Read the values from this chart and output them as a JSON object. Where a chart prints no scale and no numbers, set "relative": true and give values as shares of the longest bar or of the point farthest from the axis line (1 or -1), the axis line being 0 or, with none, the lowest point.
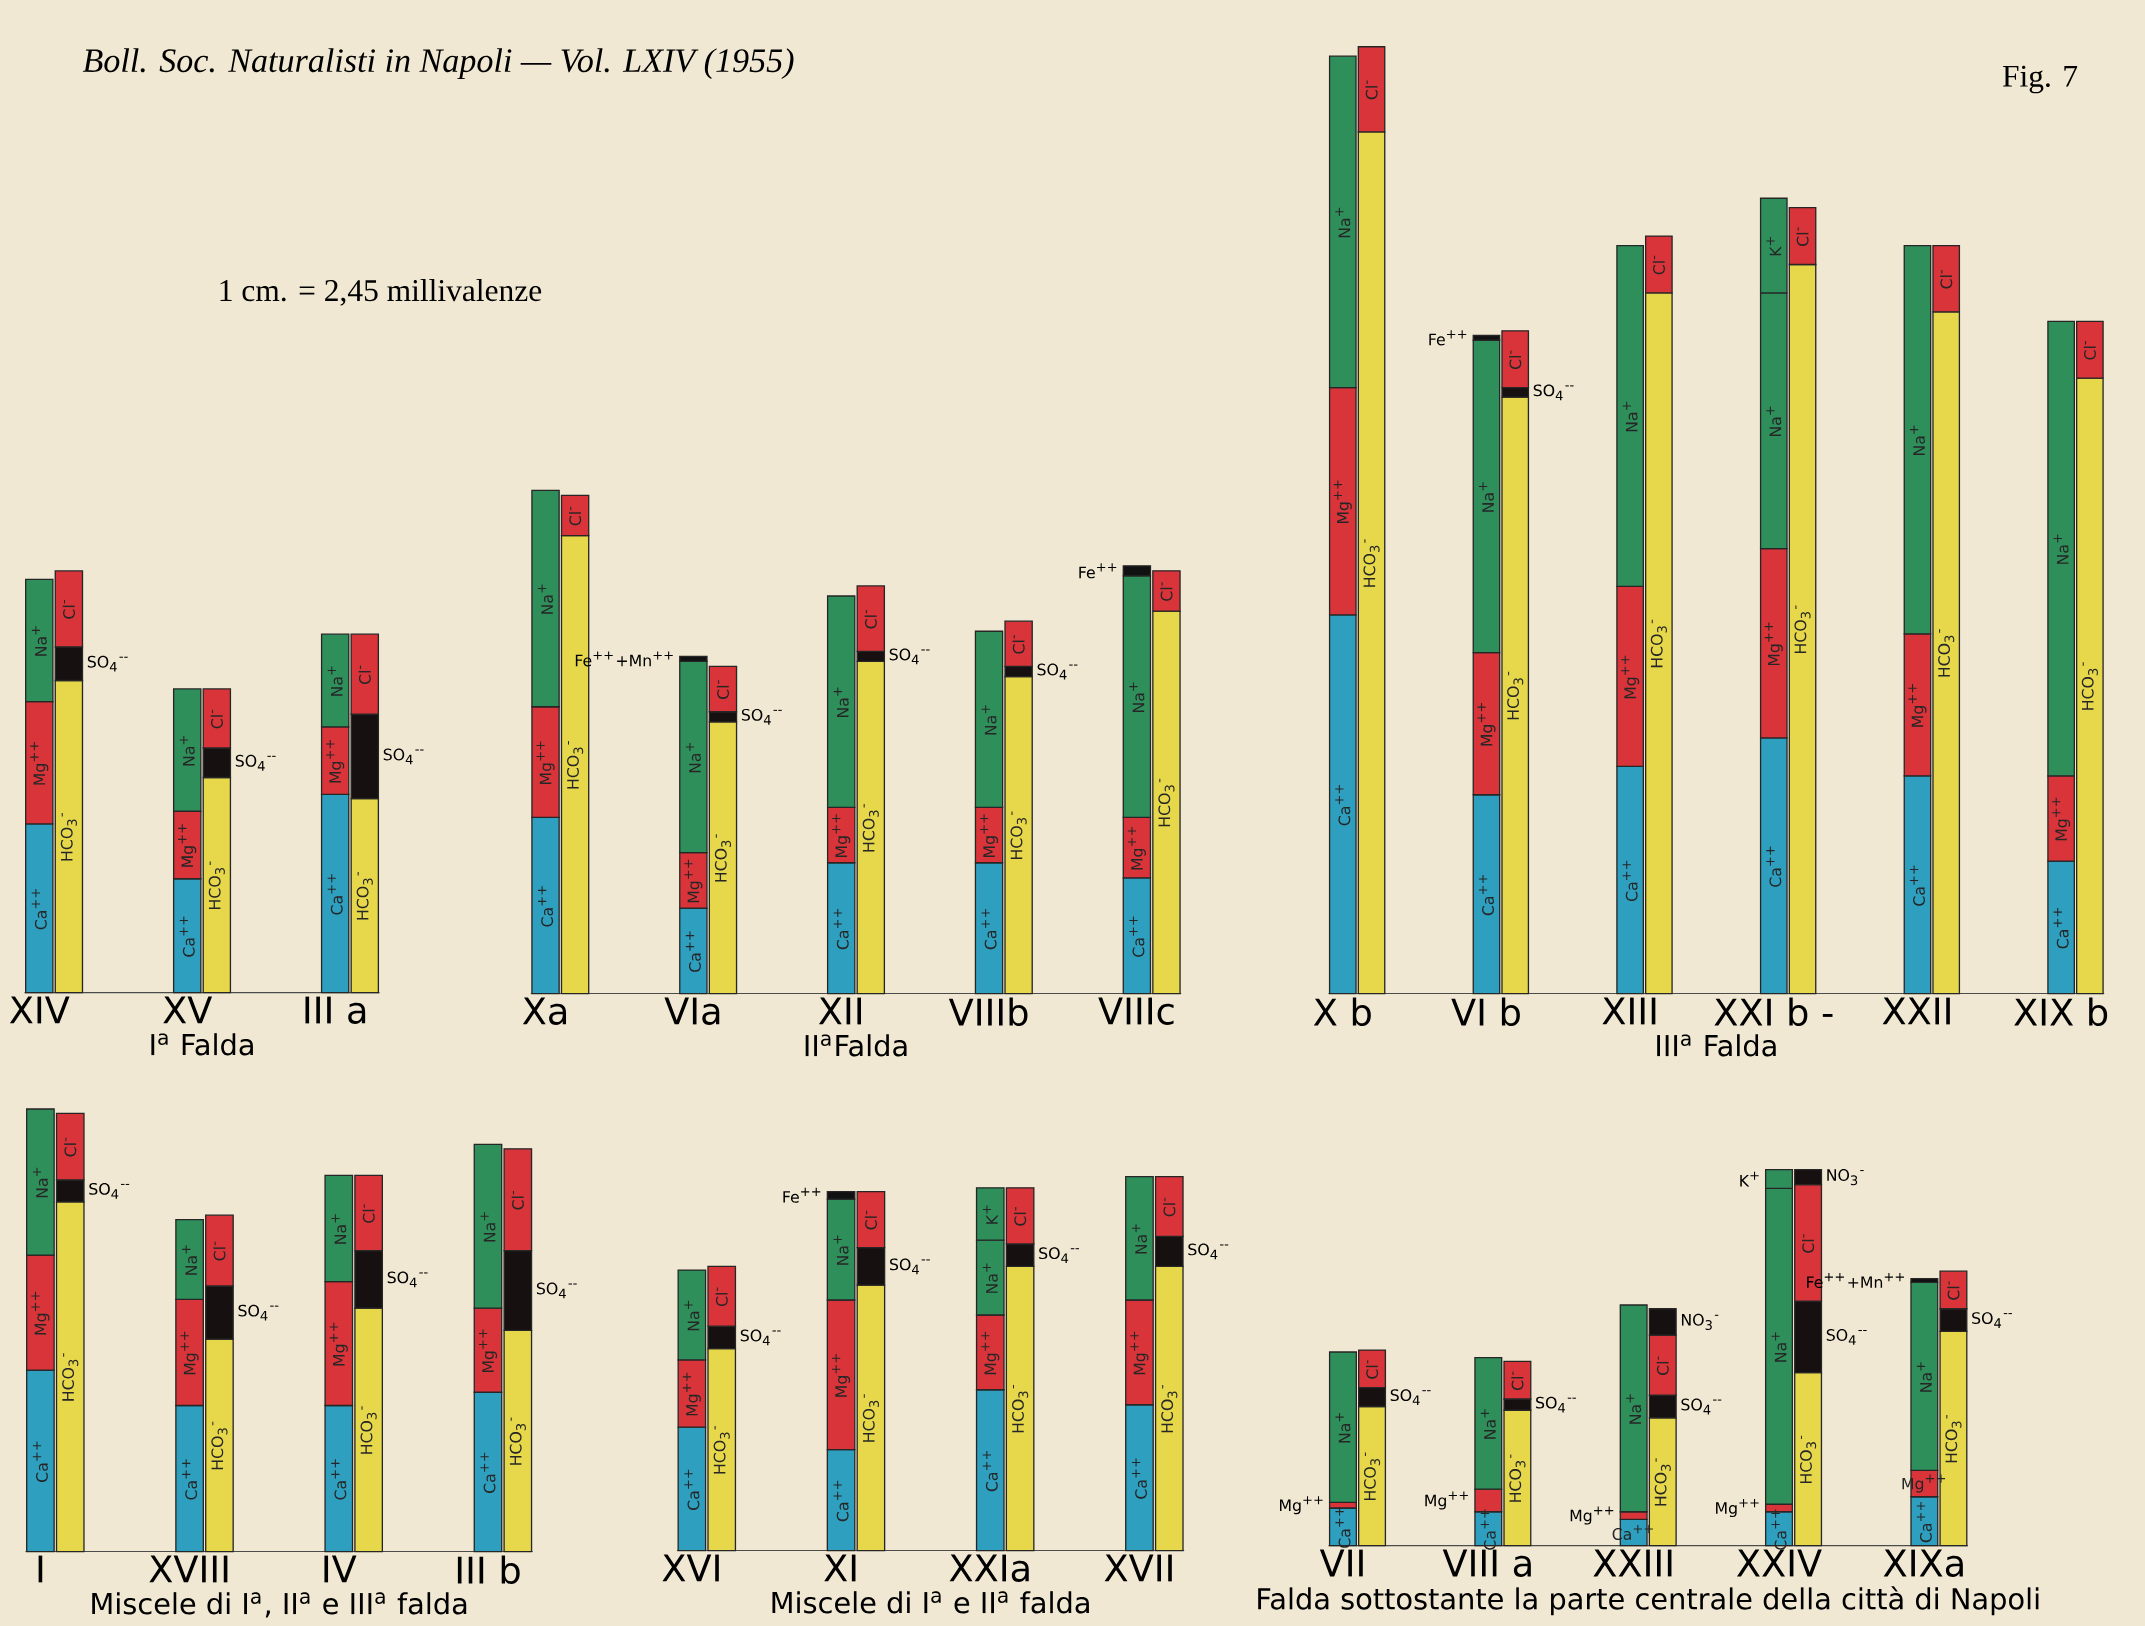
{
  "chart_data": [
    {
      "type": "bar",
      "stacked": true,
      "relative": true,
      "title": "Boll. Soc. Naturalisti in Napoli — Vol. LXIV (1955)",
      "annotations": [
        "Fig. 7",
        "1 cm. = 2,45 millivalenze"
      ],
      "xlabel": "I$^{a}$ Falda",
      "categories": [
        "XIV",
        null,
        null,
        null,
        null,
        "XV",
        null,
        null,
        null,
        null,
        "III a",
        null
      ],
      "series": [
        {
          "name": "Ca$^{++}$",
          "color": "#2e9fbf",
          "values": [
            0.4,
            null,
            null,
            null,
            null,
            0.27,
            null,
            null,
            null,
            null,
            0.47,
            null
          ]
        },
        {
          "name": "Mg$^{++}$",
          "color": "#d8343a",
          "values": [
            0.29,
            null,
            null,
            null,
            null,
            0.16,
            null,
            null,
            null,
            null,
            0.16,
            null
          ]
        },
        {
          "name": "Na$^{+}$",
          "color": "#2f8f5b",
          "values": [
            0.29,
            null,
            null,
            null,
            null,
            0.29,
            null,
            null,
            null,
            null,
            0.22,
            null
          ]
        },
        {
          "name": "HCO$_{3}$$^{-}$",
          "color": "#e6d84a",
          "values": [
            null,
            0.74,
            null,
            null,
            null,
            null,
            0.51,
            null,
            null,
            null,
            null,
            0.46
          ]
        },
        {
          "name": "SO$_{4}$$^{--}$",
          "color": "#161010",
          "values": [
            null,
            0.08,
            null,
            null,
            null,
            null,
            0.07,
            null,
            null,
            null,
            null,
            0.2
          ]
        },
        {
          "name": "Cl$^{-}$",
          "color": "#d8343a",
          "values": [
            null,
            0.18,
            null,
            null,
            null,
            null,
            0.14,
            null,
            null,
            null,
            null,
            0.19
          ]
        }
      ]
    },
    {
      "type": "bar",
      "stacked": true,
      "relative": true,
      "xlabel": "II$^{a}$Falda",
      "categories": [
        "Xa",
        null,
        null,
        null,
        null,
        "VIa",
        null,
        null,
        null,
        null,
        "XII",
        null,
        null,
        null,
        null,
        "VIIIb",
        null,
        null,
        null,
        null,
        "VIIIc",
        null
      ],
      "series": [
        {
          "name": "Ca$^{++}$",
          "color": "#2e9fbf",
          "values": [
            0.35,
            null,
            null,
            null,
            null,
            0.17,
            null,
            null,
            null,
            null,
            0.26,
            null,
            null,
            null,
            null,
            0.26,
            null,
            null,
            null,
            null,
            0.23,
            null
          ]
        },
        {
          "name": "Mg$^{++}$",
          "color": "#d8343a",
          "values": [
            0.22,
            null,
            null,
            null,
            null,
            0.11,
            null,
            null,
            null,
            null,
            0.11,
            null,
            null,
            null,
            null,
            0.11,
            null,
            null,
            null,
            null,
            0.12,
            null
          ]
        },
        {
          "name": "Na$^{+}$",
          "color": "#2f8f5b",
          "values": [
            0.43,
            null,
            null,
            null,
            null,
            0.38,
            null,
            null,
            null,
            null,
            0.42,
            null,
            null,
            null,
            null,
            0.35,
            null,
            null,
            null,
            null,
            0.48,
            null
          ]
        },
        {
          "name": "Fe$^{++}$",
          "color": "#111111",
          "values": [
            null,
            null,
            null,
            null,
            null,
            null,
            null,
            null,
            null,
            null,
            null,
            null,
            null,
            null,
            null,
            null,
            null,
            null,
            null,
            null,
            0.02,
            null
          ]
        },
        {
          "name": "Fe$^{++}$+Mn$^{++}$",
          "color": "#111111",
          "values": [
            null,
            null,
            null,
            null,
            null,
            0.01,
            null,
            null,
            null,
            null,
            null,
            null,
            null,
            null,
            null,
            null,
            null,
            null,
            null,
            null,
            null,
            null
          ]
        },
        {
          "name": "HCO$_{3}$$^{-}$",
          "color": "#e6d84a",
          "values": [
            null,
            0.91,
            null,
            null,
            null,
            null,
            0.54,
            null,
            null,
            null,
            null,
            0.66,
            null,
            null,
            null,
            null,
            0.63,
            null,
            null,
            null,
            null,
            0.76
          ]
        },
        {
          "name": "SO$_{4}$$^{--}$",
          "color": "#161010",
          "values": [
            null,
            null,
            null,
            null,
            null,
            null,
            0.02,
            null,
            null,
            null,
            null,
            0.02,
            null,
            null,
            null,
            null,
            0.02,
            null,
            null,
            null,
            null,
            null
          ]
        },
        {
          "name": "Cl$^{-}$",
          "color": "#d8343a",
          "values": [
            null,
            0.08,
            null,
            null,
            null,
            null,
            0.09,
            null,
            null,
            null,
            null,
            0.13,
            null,
            null,
            null,
            null,
            0.09,
            null,
            null,
            null,
            null,
            0.08
          ]
        }
      ]
    },
    {
      "type": "bar",
      "stacked": true,
      "relative": true,
      "xlabel": "III$^{a}$ Falda",
      "categories": [
        "X b",
        null,
        null,
        null,
        null,
        "VI b",
        null,
        null,
        null,
        null,
        "XIII",
        null,
        null,
        null,
        null,
        "XXI b -",
        null,
        null,
        null,
        null,
        "XXII",
        null,
        null,
        null,
        null,
        "XIX b",
        null
      ],
      "series": [
        {
          "name": "Ca$^{++}$",
          "color": "#2e9fbf",
          "values": [
            0.4,
            null,
            null,
            null,
            null,
            0.21,
            null,
            null,
            null,
            null,
            0.24,
            null,
            null,
            null,
            null,
            0.27,
            null,
            null,
            null,
            null,
            0.23,
            null,
            null,
            null,
            null,
            0.14,
            null
          ]
        },
        {
          "name": "Mg$^{++}$",
          "color": "#d8343a",
          "values": [
            0.24,
            null,
            null,
            null,
            null,
            0.15,
            null,
            null,
            null,
            null,
            0.19,
            null,
            null,
            null,
            null,
            0.2,
            null,
            null,
            null,
            null,
            0.15,
            null,
            null,
            null,
            null,
            0.09,
            null
          ]
        },
        {
          "name": "Na$^{+}$",
          "color": "#2f8f5b",
          "values": [
            0.35,
            null,
            null,
            null,
            null,
            0.33,
            null,
            null,
            null,
            null,
            0.36,
            null,
            null,
            null,
            null,
            0.27,
            null,
            null,
            null,
            null,
            0.41,
            null,
            null,
            null,
            null,
            0.48,
            null
          ]
        },
        {
          "name": "K$^{+}$",
          "color": "#2f8f5b",
          "values": [
            null,
            null,
            null,
            null,
            null,
            null,
            null,
            null,
            null,
            null,
            null,
            null,
            null,
            null,
            null,
            0.1,
            null,
            null,
            null,
            null,
            null,
            null,
            null,
            null,
            null,
            null,
            null
          ]
        },
        {
          "name": "Fe$^{++}$",
          "color": "#111111",
          "values": [
            null,
            null,
            null,
            null,
            null,
            0.005,
            null,
            null,
            null,
            null,
            null,
            null,
            null,
            null,
            null,
            null,
            null,
            null,
            null,
            null,
            null,
            null,
            null,
            null,
            null,
            null,
            null
          ]
        },
        {
          "name": "HCO$_{3}$$^{-}$",
          "color": "#e6d84a",
          "values": [
            null,
            0.91,
            null,
            null,
            null,
            null,
            0.63,
            null,
            null,
            null,
            null,
            0.74,
            null,
            null,
            null,
            null,
            0.77,
            null,
            null,
            null,
            null,
            0.72,
            null,
            null,
            null,
            null,
            0.65
          ]
        },
        {
          "name": "SO$_{4}$$^{--}$",
          "color": "#161010",
          "values": [
            null,
            null,
            null,
            null,
            null,
            null,
            0.01,
            null,
            null,
            null,
            null,
            null,
            null,
            null,
            null,
            null,
            null,
            null,
            null,
            null,
            null,
            null,
            null,
            null,
            null,
            null,
            null
          ]
        },
        {
          "name": "Cl$^{-}$",
          "color": "#d8343a",
          "values": [
            null,
            0.09,
            null,
            null,
            null,
            null,
            0.06,
            null,
            null,
            null,
            null,
            0.06,
            null,
            null,
            null,
            null,
            0.06,
            null,
            null,
            null,
            null,
            0.07,
            null,
            null,
            null,
            null,
            0.06
          ]
        }
      ]
    },
    {
      "type": "bar",
      "stacked": true,
      "relative": true,
      "xlabel": "Miscele di I$^{a}$, II$^{a}$ e III$^{a}$ falda",
      "categories": [
        "I",
        null,
        null,
        null,
        null,
        "XVIII",
        null,
        null,
        null,
        null,
        "IV",
        null,
        null,
        null,
        null,
        "III b",
        null
      ],
      "series": [
        {
          "name": "Ca$^{++}$",
          "color": "#2e9fbf",
          "values": [
            0.41,
            null,
            null,
            null,
            null,
            0.33,
            null,
            null,
            null,
            null,
            0.33,
            null,
            null,
            null,
            null,
            0.36,
            null
          ]
        },
        {
          "name": "Mg$^{++}$",
          "color": "#d8343a",
          "values": [
            0.26,
            null,
            null,
            null,
            null,
            0.24,
            null,
            null,
            null,
            null,
            0.28,
            null,
            null,
            null,
            null,
            0.19,
            null
          ]
        },
        {
          "name": "Na$^{+}$",
          "color": "#2f8f5b",
          "values": [
            0.33,
            null,
            null,
            null,
            null,
            0.18,
            null,
            null,
            null,
            null,
            0.24,
            null,
            null,
            null,
            null,
            0.37,
            null
          ]
        },
        {
          "name": "HCO$_{3}$$^{-}$",
          "color": "#e6d84a",
          "values": [
            null,
            0.79,
            null,
            null,
            null,
            null,
            0.48,
            null,
            null,
            null,
            null,
            0.55,
            null,
            null,
            null,
            null,
            0.5
          ]
        },
        {
          "name": "SO$_{4}$$^{--}$",
          "color": "#161010",
          "values": [
            null,
            0.05,
            null,
            null,
            null,
            null,
            0.12,
            null,
            null,
            null,
            null,
            0.13,
            null,
            null,
            null,
            null,
            0.18
          ]
        },
        {
          "name": "Cl$^{-}$",
          "color": "#d8343a",
          "values": [
            null,
            0.15,
            null,
            null,
            null,
            null,
            0.16,
            null,
            null,
            null,
            null,
            0.17,
            null,
            null,
            null,
            null,
            0.23
          ]
        }
      ]
    },
    {
      "type": "bar",
      "stacked": true,
      "relative": true,
      "xlabel": "Miscele di I$^{a}$ e II$^{a}$ falda",
      "categories": [
        "XVI",
        null,
        null,
        null,
        null,
        "XI",
        null,
        null,
        null,
        null,
        "XXIa",
        null,
        null,
        null,
        null,
        "XVII",
        null
      ],
      "series": [
        {
          "name": "Ca$^{++}$",
          "color": "#2e9fbf",
          "values": [
            0.33,
            null,
            null,
            null,
            null,
            0.27,
            null,
            null,
            null,
            null,
            0.43,
            null,
            null,
            null,
            null,
            0.39,
            null
          ]
        },
        {
          "name": "Mg$^{++}$",
          "color": "#d8343a",
          "values": [
            0.18,
            null,
            null,
            null,
            null,
            0.4,
            null,
            null,
            null,
            null,
            0.2,
            null,
            null,
            null,
            null,
            0.28,
            null
          ]
        },
        {
          "name": "Na$^{+}$",
          "color": "#2f8f5b",
          "values": [
            0.24,
            null,
            null,
            null,
            null,
            0.27,
            null,
            null,
            null,
            null,
            0.2,
            null,
            null,
            null,
            null,
            0.33,
            null
          ]
        },
        {
          "name": "K$^{+}$",
          "color": "#2f8f5b",
          "values": [
            null,
            null,
            null,
            null,
            null,
            null,
            null,
            null,
            null,
            null,
            0.14,
            null,
            null,
            null,
            null,
            null,
            null
          ]
        },
        {
          "name": "Fe$^{++}$",
          "color": "#111111",
          "values": [
            null,
            null,
            null,
            null,
            null,
            0.02,
            null,
            null,
            null,
            null,
            null,
            null,
            null,
            null,
            null,
            null,
            null
          ]
        },
        {
          "name": "HCO$_{3}$$^{-}$",
          "color": "#e6d84a",
          "values": [
            null,
            0.54,
            null,
            null,
            null,
            null,
            0.71,
            null,
            null,
            null,
            null,
            0.76,
            null,
            null,
            null,
            null,
            0.76
          ]
        },
        {
          "name": "SO$_{4}$$^{--}$",
          "color": "#161010",
          "values": [
            null,
            0.06,
            null,
            null,
            null,
            null,
            0.1,
            null,
            null,
            null,
            null,
            0.06,
            null,
            null,
            null,
            null,
            0.08
          ]
        },
        {
          "name": "Cl$^{-}$",
          "color": "#d8343a",
          "values": [
            null,
            0.16,
            null,
            null,
            null,
            null,
            0.15,
            null,
            null,
            null,
            null,
            0.15,
            null,
            null,
            null,
            null,
            0.16
          ]
        }
      ]
    },
    {
      "type": "bar",
      "stacked": true,
      "relative": true,
      "xlabel": "Falda sottostante la parte centrale della città di Napoli",
      "categories": [
        "VII",
        null,
        null,
        null,
        null,
        "VIII a",
        null,
        null,
        null,
        null,
        "XXIII",
        null,
        null,
        null,
        null,
        "XXIV",
        null,
        null,
        null,
        null,
        "XIXa",
        null
      ],
      "series": [
        {
          "name": "Ca$^{++}$",
          "color": "#2e9fbf",
          "values": [
            0.1,
            null,
            null,
            null,
            null,
            0.09,
            null,
            null,
            null,
            null,
            0.07,
            null,
            null,
            null,
            null,
            0.09,
            null,
            null,
            null,
            null,
            0.13,
            null
          ]
        },
        {
          "name": "Mg$^{++}$",
          "color": "#d8343a",
          "values": [
            0.015,
            null,
            null,
            null,
            null,
            0.06,
            null,
            null,
            null,
            null,
            0.02,
            null,
            null,
            null,
            null,
            0.02,
            null,
            null,
            null,
            null,
            0.07,
            null
          ]
        },
        {
          "name": "Na$^{+}$",
          "color": "#2f8f5b",
          "values": [
            0.4,
            null,
            null,
            null,
            null,
            0.35,
            null,
            null,
            null,
            null,
            0.55,
            null,
            null,
            null,
            null,
            0.84,
            null,
            null,
            null,
            null,
            0.5,
            null
          ]
        },
        {
          "name": "K$^{+}$",
          "color": "#2f8f5b",
          "values": [
            null,
            null,
            null,
            null,
            null,
            null,
            null,
            null,
            null,
            null,
            null,
            null,
            null,
            null,
            null,
            0.05,
            null,
            null,
            null,
            null,
            null,
            null
          ]
        },
        {
          "name": "Fe$^{++}$+Mn$^{++}$",
          "color": "#111111",
          "values": [
            null,
            null,
            null,
            null,
            null,
            null,
            null,
            null,
            null,
            null,
            null,
            null,
            null,
            null,
            null,
            null,
            null,
            null,
            null,
            null,
            0.01,
            null
          ]
        },
        {
          "name": "HCO$_{3}$$^{-}$",
          "color": "#e6d84a",
          "values": [
            null,
            0.37,
            null,
            null,
            null,
            null,
            0.36,
            null,
            null,
            null,
            null,
            0.34,
            null,
            null,
            null,
            null,
            0.46,
            null,
            null,
            null,
            null,
            0.57
          ]
        },
        {
          "name": "SO$_{4}$$^{--}$",
          "color": "#161010",
          "values": [
            null,
            0.05,
            null,
            null,
            null,
            null,
            0.03,
            null,
            null,
            null,
            null,
            0.06,
            null,
            null,
            null,
            null,
            0.19,
            null,
            null,
            null,
            null,
            0.06
          ]
        },
        {
          "name": "Cl$^{-}$",
          "color": "#d8343a",
          "values": [
            null,
            0.1,
            null,
            null,
            null,
            null,
            0.1,
            null,
            null,
            null,
            null,
            0.16,
            null,
            null,
            null,
            null,
            0.31,
            null,
            null,
            null,
            null,
            0.1
          ]
        },
        {
          "name": "NO$_{3}$$^{-}$",
          "color": "#161010",
          "values": [
            null,
            null,
            null,
            null,
            null,
            null,
            null,
            null,
            null,
            null,
            null,
            0.07,
            null,
            null,
            null,
            null,
            0.04,
            null,
            null,
            null,
            null,
            null
          ]
        }
      ]
    }
  ]
}
